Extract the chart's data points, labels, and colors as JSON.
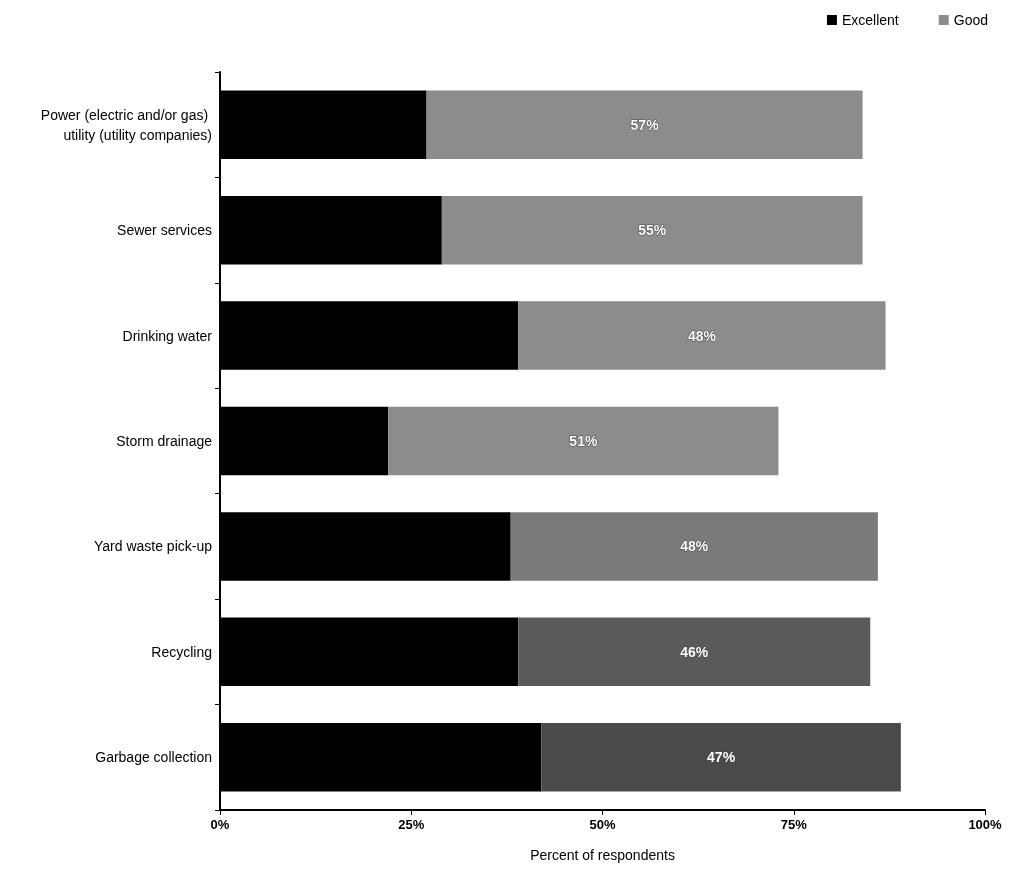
{
  "chart_data": {
    "type": "bar",
    "orientation": "horizontal",
    "stacked": true,
    "categories": [
      "Power (electric and/or gas) utility (utility companies)",
      "Sewer services",
      "Drinking water",
      "Storm drainage",
      "Yard waste pick-up",
      "Recycling",
      "Garbage collection"
    ],
    "series": [
      {
        "name": "Excellent",
        "color": "#000000",
        "values": [
          27,
          29,
          39,
          22,
          38,
          39,
          42
        ]
      },
      {
        "name": "Good",
        "color": "#8c8c8c",
        "colors": [
          "#8c8c8c",
          "#8c8c8c",
          "#8c8c8c",
          "#8c8c8c",
          "#7a7a7a",
          "#5a5a5a",
          "#4a4a4a"
        ],
        "values": [
          57,
          55,
          48,
          51,
          48,
          46,
          47
        ],
        "value_labels": [
          "57%",
          "55%",
          "48%",
          "51%",
          "48%",
          "46%",
          "47%"
        ]
      }
    ],
    "xlim": [
      0,
      100
    ],
    "xticks": [
      {
        "value": 0,
        "label": "0%"
      },
      {
        "value": 25,
        "label": "25%"
      },
      {
        "value": 50,
        "label": "50%"
      },
      {
        "value": 75,
        "label": "75%"
      },
      {
        "value": 100,
        "label": "100%"
      }
    ],
    "xlabel": "Percent of respondents",
    "legend": "top right",
    "grid": false
  }
}
